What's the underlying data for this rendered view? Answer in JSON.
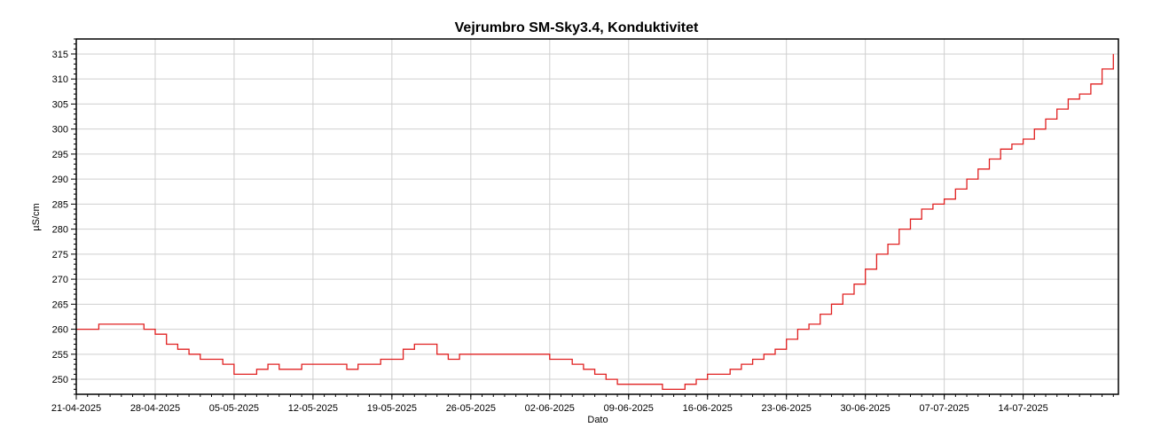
{
  "chart_data": {
    "type": "line",
    "title": "Vejrumbro SM-Sky3.4, Konduktivitet",
    "xlabel": "Dato",
    "ylabel": "µS/cm",
    "ylim": [
      247,
      318
    ],
    "xlim": [
      "2025-04-21",
      "2025-07-22"
    ],
    "grid": true,
    "line_color": "#e02020",
    "y_ticks": [
      250,
      255,
      260,
      265,
      270,
      275,
      280,
      285,
      290,
      295,
      300,
      305,
      310,
      315
    ],
    "x_ticks": [
      "21-04-2025",
      "28-04-2025",
      "05-05-2025",
      "12-05-2025",
      "19-05-2025",
      "26-05-2025",
      "02-06-2025",
      "09-06-2025",
      "16-06-2025",
      "23-06-2025",
      "30-06-2025",
      "07-07-2025",
      "14-07-2025"
    ],
    "series": [
      {
        "x": [
          "2025-04-21",
          "2025-04-22",
          "2025-04-23",
          "2025-04-24",
          "2025-04-25",
          "2025-04-26",
          "2025-04-27",
          "2025-04-28",
          "2025-04-29",
          "2025-04-30",
          "2025-05-01",
          "2025-05-02",
          "2025-05-03",
          "2025-05-04",
          "2025-05-05",
          "2025-05-06",
          "2025-05-07",
          "2025-05-08",
          "2025-05-09",
          "2025-05-10",
          "2025-05-11",
          "2025-05-12",
          "2025-05-13",
          "2025-05-14",
          "2025-05-15",
          "2025-05-16",
          "2025-05-17",
          "2025-05-18",
          "2025-05-19",
          "2025-05-20",
          "2025-05-21",
          "2025-05-22",
          "2025-05-23",
          "2025-05-24",
          "2025-05-25",
          "2025-05-26",
          "2025-05-27",
          "2025-05-28",
          "2025-05-29",
          "2025-05-30",
          "2025-05-31",
          "2025-06-01",
          "2025-06-02",
          "2025-06-03",
          "2025-06-04",
          "2025-06-05",
          "2025-06-06",
          "2025-06-07",
          "2025-06-08",
          "2025-06-09",
          "2025-06-10",
          "2025-06-11",
          "2025-06-12",
          "2025-06-13",
          "2025-06-14",
          "2025-06-15",
          "2025-06-16",
          "2025-06-17",
          "2025-06-18",
          "2025-06-19",
          "2025-06-20",
          "2025-06-21",
          "2025-06-22",
          "2025-06-23",
          "2025-06-24",
          "2025-06-25",
          "2025-06-26",
          "2025-06-27",
          "2025-06-28",
          "2025-06-29",
          "2025-06-30",
          "2025-07-01",
          "2025-07-02",
          "2025-07-03",
          "2025-07-04",
          "2025-07-05",
          "2025-07-06",
          "2025-07-07",
          "2025-07-08",
          "2025-07-09",
          "2025-07-10",
          "2025-07-11",
          "2025-07-12",
          "2025-07-13",
          "2025-07-14",
          "2025-07-15",
          "2025-07-16",
          "2025-07-17",
          "2025-07-18",
          "2025-07-19",
          "2025-07-20",
          "2025-07-21",
          "2025-07-22"
        ],
        "values": [
          260,
          260,
          261,
          261,
          261,
          261,
          260,
          259,
          257,
          256,
          255,
          254,
          254,
          253,
          251,
          251,
          252,
          253,
          252,
          252,
          253,
          253,
          253,
          253,
          252,
          253,
          253,
          254,
          254,
          256,
          257,
          257,
          255,
          254,
          255,
          255,
          255,
          255,
          255,
          255,
          255,
          255,
          254,
          254,
          253,
          252,
          251,
          250,
          249,
          249,
          249,
          249,
          248,
          248,
          249,
          250,
          251,
          251,
          252,
          253,
          254,
          255,
          256,
          258,
          260,
          261,
          263,
          265,
          267,
          269,
          272,
          275,
          277,
          280,
          282,
          284,
          285,
          286,
          288,
          290,
          292,
          294,
          296,
          297,
          298,
          300,
          302,
          304,
          306,
          307,
          309,
          312,
          315
        ]
      }
    ]
  }
}
